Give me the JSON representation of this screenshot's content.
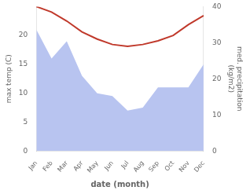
{
  "chart_data": {
    "type": "line",
    "xlabel": "date (month)",
    "ylabel": "max temp (C)",
    "y2label": "med. precipitation\n(kg/m2)",
    "categories": [
      "Jan",
      "Feb",
      "Mar",
      "Apr",
      "May",
      "Jun",
      "Jul",
      "Aug",
      "Sep",
      "Oct",
      "Nov",
      "Dec"
    ],
    "series": [
      {
        "type": "area",
        "color": "#b8c4f0",
        "values": [
          21.0,
          16.0,
          19.0,
          13.0,
          10.0,
          9.5,
          7.0,
          7.5,
          11.0,
          11.0,
          11.0,
          15.0
        ]
      },
      {
        "type": "line",
        "color": "#c0392b",
        "axis": "y2",
        "values": [
          40.0,
          38.5,
          36.0,
          33.0,
          31.0,
          29.5,
          29.0,
          29.5,
          30.5,
          32.0,
          35.0,
          37.5
        ]
      }
    ],
    "ylim": [
      0,
      25
    ],
    "yticks": [
      0,
      5,
      10,
      15,
      20
    ],
    "y2lim": [
      0,
      40
    ],
    "y2ticks": [
      0,
      10,
      20,
      30,
      40
    ],
    "grid": false
  }
}
